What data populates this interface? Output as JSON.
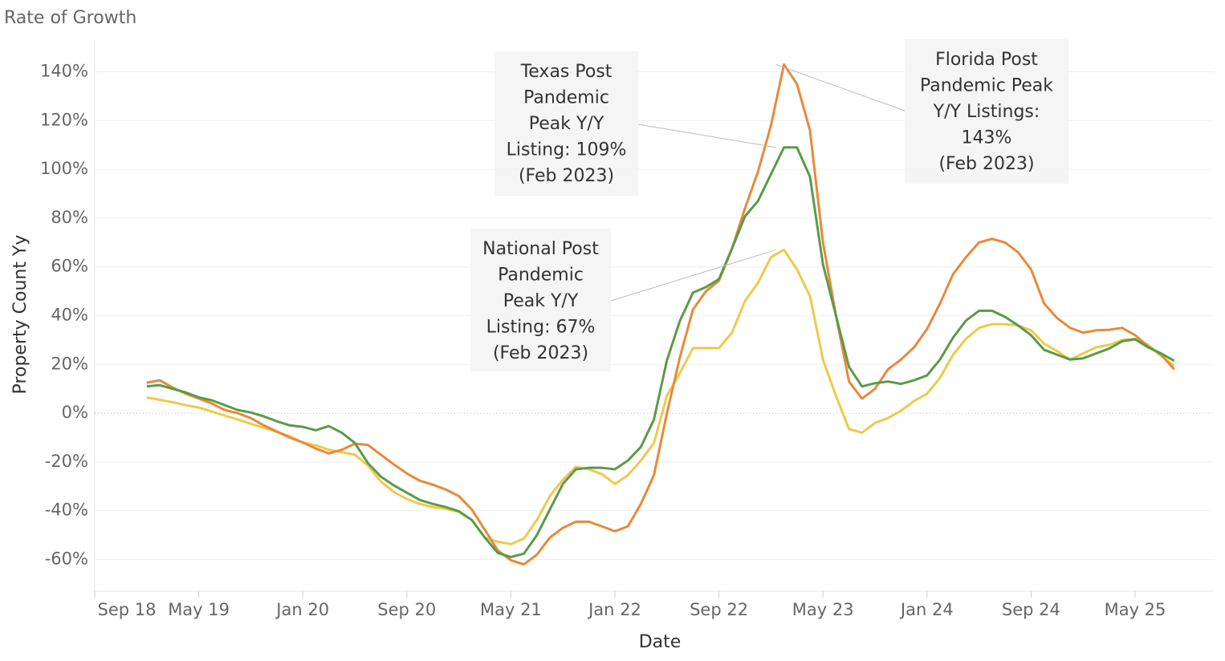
{
  "chart_data": {
    "type": "line",
    "title": "Rate of Growth",
    "x_label": "Date",
    "y_label": "Property Count Yy",
    "x": [
      "2019-01",
      "2019-02",
      "2019-03",
      "2019-04",
      "2019-05",
      "2019-06",
      "2019-07",
      "2019-08",
      "2019-09",
      "2019-10",
      "2019-11",
      "2019-12",
      "2020-01",
      "2020-02",
      "2020-03",
      "2020-04",
      "2020-05",
      "2020-06",
      "2020-07",
      "2020-08",
      "2020-09",
      "2020-10",
      "2020-11",
      "2020-12",
      "2021-01",
      "2021-02",
      "2021-03",
      "2021-04",
      "2021-05",
      "2021-06",
      "2021-07",
      "2021-08",
      "2021-09",
      "2021-10",
      "2021-11",
      "2021-12",
      "2022-01",
      "2022-02",
      "2022-03",
      "2022-04",
      "2022-05",
      "2022-06",
      "2022-07",
      "2022-08",
      "2022-09",
      "2022-10",
      "2022-11",
      "2022-12",
      "2023-01",
      "2023-02",
      "2023-03",
      "2023-04",
      "2023-05",
      "2023-06",
      "2023-07",
      "2023-08",
      "2023-09",
      "2023-10",
      "2023-11",
      "2023-12",
      "2024-01",
      "2024-02",
      "2024-03",
      "2024-04",
      "2024-05",
      "2024-06",
      "2024-07",
      "2024-08",
      "2024-09",
      "2024-10",
      "2024-11",
      "2024-12",
      "2025-01",
      "2025-02",
      "2025-03",
      "2025-04",
      "2025-05",
      "2025-06",
      "2025-07",
      "2025-08"
    ],
    "series": [
      {
        "color": "#efc94c",
        "values": [
          6.5,
          5.5,
          4.5,
          3.3,
          2.3,
          0.7,
          -1,
          -2.6,
          -4.3,
          -6,
          -7.6,
          -9.5,
          -12,
          -13.2,
          -15,
          -16,
          -17,
          -21.4,
          -28,
          -32.3,
          -35.2,
          -37.2,
          -38.5,
          -39.2,
          -40.5,
          -43.8,
          -51,
          -52.7,
          -53.7,
          -51.4,
          -43.8,
          -34,
          -27.3,
          -22,
          -23,
          -25,
          -29,
          -25.4,
          -19.4,
          -12.2,
          7.2,
          16.5,
          26.7,
          26.7,
          26.7,
          33,
          46,
          53.4,
          64,
          67,
          59,
          48,
          22,
          7,
          -6.5,
          -8,
          -4,
          -2,
          1,
          5,
          8,
          14.5,
          24,
          30.5,
          35,
          36.5,
          36.5,
          36,
          34,
          28.5,
          25.5,
          22,
          24.5,
          27,
          28,
          30,
          30.5,
          28,
          23.5,
          19.5
        ]
      },
      {
        "color": "#e8893a",
        "values": [
          12.5,
          13.5,
          10.5,
          8,
          6,
          4,
          1.3,
          0,
          -2,
          -5,
          -7.5,
          -10,
          -12,
          -14.5,
          -16.5,
          -15,
          -12.5,
          -13,
          -17,
          -21,
          -24.7,
          -27.7,
          -29.3,
          -31.3,
          -34,
          -39.5,
          -47.8,
          -56.3,
          -60.3,
          -62,
          -58,
          -51,
          -47,
          -44.5,
          -44.5,
          -46.4,
          -48.4,
          -46.4,
          -37.2,
          -25.4,
          0,
          23,
          42.5,
          50,
          54.3,
          67.5,
          84,
          99,
          118,
          143,
          135,
          116,
          70,
          40,
          13,
          6,
          10,
          18,
          22,
          27,
          34.5,
          45,
          57,
          64,
          70,
          71.5,
          70,
          66,
          59,
          45,
          39,
          35,
          33,
          34,
          34.2,
          35,
          32,
          27.5,
          24,
          18
        ]
      },
      {
        "color": "#5b9a48",
        "values": [
          11,
          11.5,
          10,
          8.5,
          6.5,
          5.3,
          3.3,
          1.3,
          0.3,
          -1.3,
          -3.3,
          -5,
          -5.6,
          -7,
          -5.3,
          -8,
          -12.2,
          -20.4,
          -26,
          -29.6,
          -32.6,
          -35.6,
          -37.2,
          -38.5,
          -40.2,
          -43.8,
          -51,
          -57.3,
          -59,
          -57.6,
          -50,
          -39.5,
          -29,
          -23,
          -22.4,
          -22.4,
          -23,
          -19.4,
          -13.8,
          -2.6,
          21.7,
          37.9,
          49.4,
          51.7,
          55,
          67.5,
          80.7,
          87,
          98,
          109,
          109,
          97,
          61,
          40,
          19,
          11,
          12.3,
          13,
          12,
          13.5,
          15.5,
          22,
          31,
          38,
          42,
          42,
          39.5,
          36,
          32,
          26,
          24,
          22,
          22.5,
          24.5,
          26.5,
          29.5,
          30.3,
          27,
          24.5,
          21.5
        ]
      }
    ],
    "xlim": [
      "2018-09",
      "2025-11"
    ],
    "xticks": [
      {
        "value": "2018-09",
        "label": "Sep 18"
      },
      {
        "value": "2019-05",
        "label": "May 19"
      },
      {
        "value": "2020-01",
        "label": "Jan 20"
      },
      {
        "value": "2020-09",
        "label": "Sep 20"
      },
      {
        "value": "2021-05",
        "label": "May 21"
      },
      {
        "value": "2022-01",
        "label": "Jan 22"
      },
      {
        "value": "2022-09",
        "label": "Sep 22"
      },
      {
        "value": "2023-05",
        "label": "May 23"
      },
      {
        "value": "2024-01",
        "label": "Jan 24"
      },
      {
        "value": "2024-09",
        "label": "Sep 24"
      },
      {
        "value": "2025-05",
        "label": "May 25"
      }
    ],
    "ylim": [
      -73,
      153
    ],
    "yticks": [
      {
        "value": -60,
        "label": "-60%"
      },
      {
        "value": -40,
        "label": "-40%"
      },
      {
        "value": -20,
        "label": "-20%"
      },
      {
        "value": 0,
        "label": "0%"
      },
      {
        "value": 20,
        "label": "20%"
      },
      {
        "value": 40,
        "label": "40%"
      },
      {
        "value": 60,
        "label": "60%"
      },
      {
        "value": 80,
        "label": "80%"
      },
      {
        "value": 100,
        "label": "100%"
      },
      {
        "value": 120,
        "label": "120%"
      },
      {
        "value": 140,
        "label": "140%"
      }
    ],
    "grid": true,
    "annotations": [
      {
        "lines": [
          "Texas Post",
          "Pandemic",
          "Peak Y/Y",
          "Listing: 109%",
          "(Feb 2023)"
        ]
      },
      {
        "lines": [
          "Florida Post",
          "Pandemic Peak",
          "Y/Y Listings:",
          "143%",
          "(Feb 2023)"
        ]
      },
      {
        "lines": [
          "National Post",
          "Pandemic",
          "Peak Y/Y",
          "Listing: 67%",
          "(Feb 2023)"
        ]
      }
    ]
  }
}
